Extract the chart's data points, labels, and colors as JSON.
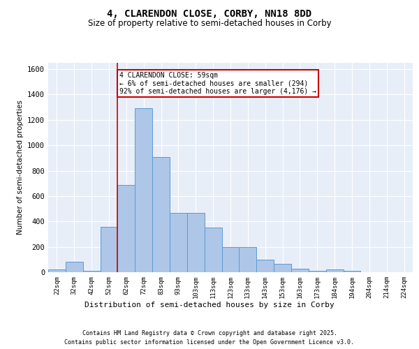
{
  "title_line1": "4, CLARENDON CLOSE, CORBY, NN18 8DD",
  "title_line2": "Size of property relative to semi-detached houses in Corby",
  "xlabel": "Distribution of semi-detached houses by size in Corby",
  "ylabel": "Number of semi-detached properties",
  "categories": [
    "22sqm",
    "32sqm",
    "42sqm",
    "52sqm",
    "62sqm",
    "72sqm",
    "83sqm",
    "93sqm",
    "103sqm",
    "113sqm",
    "123sqm",
    "133sqm",
    "143sqm",
    "153sqm",
    "163sqm",
    "173sqm",
    "184sqm",
    "194sqm",
    "204sqm",
    "214sqm",
    "224sqm"
  ],
  "values": [
    20,
    80,
    10,
    360,
    690,
    1290,
    905,
    470,
    465,
    350,
    200,
    200,
    100,
    65,
    25,
    10,
    20,
    10,
    0,
    0,
    0
  ],
  "bar_color": "#aec6e8",
  "bar_edge_color": "#5b9bd5",
  "red_line_index": 4,
  "annotation_text": "4 CLARENDON CLOSE: 59sqm\n← 6% of semi-detached houses are smaller (294)\n92% of semi-detached houses are larger (4,176) →",
  "annotation_box_color": "#ffffff",
  "annotation_box_edge": "#cc0000",
  "red_line_color": "#cc0000",
  "ylim": [
    0,
    1650
  ],
  "yticks": [
    0,
    200,
    400,
    600,
    800,
    1000,
    1200,
    1400,
    1600
  ],
  "background_color": "#e8eef8",
  "grid_color": "#ffffff",
  "footer_line1": "Contains HM Land Registry data © Crown copyright and database right 2025.",
  "footer_line2": "Contains public sector information licensed under the Open Government Licence v3.0."
}
